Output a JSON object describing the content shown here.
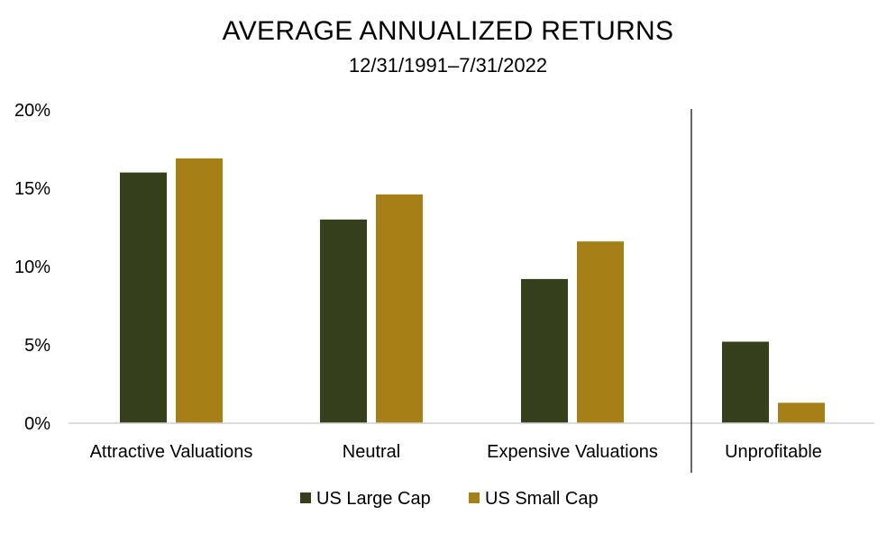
{
  "chart_data": {
    "type": "bar",
    "title": "AVERAGE ANNUALIZED RETURNS",
    "subtitle": "12/31/1991–7/31/2022",
    "categories": [
      "Attractive Valuations",
      "Neutral",
      "Expensive Valuations",
      "Unprofitable"
    ],
    "series": [
      {
        "name": "US Large Cap",
        "color": "#353f1b",
        "values": [
          16.0,
          13.0,
          9.2,
          5.2
        ]
      },
      {
        "name": "US Small Cap",
        "color": "#a68017",
        "values": [
          16.9,
          14.6,
          11.6,
          1.3
        ]
      }
    ],
    "ylim": [
      0,
      20
    ],
    "yticks": [
      0,
      5,
      10,
      15,
      20
    ],
    "ytick_labels": [
      "0%",
      "5%",
      "10%",
      "15%",
      "20%"
    ],
    "xlabel": "",
    "ylabel": "",
    "grid": false,
    "separator_before_category": 3,
    "legend_position": "bottom"
  }
}
